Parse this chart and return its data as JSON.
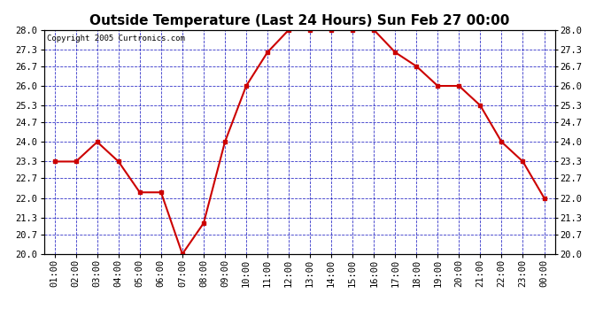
{
  "title": "Outside Temperature (Last 24 Hours) Sun Feb 27 00:00",
  "copyright": "Copyright 2005 Curtronics.com",
  "x_labels": [
    "01:00",
    "02:00",
    "03:00",
    "04:00",
    "05:00",
    "06:00",
    "07:00",
    "08:00",
    "09:00",
    "10:00",
    "11:00",
    "12:00",
    "13:00",
    "14:00",
    "15:00",
    "16:00",
    "17:00",
    "18:00",
    "19:00",
    "20:00",
    "21:00",
    "22:00",
    "23:00",
    "00:00"
  ],
  "x_values": [
    1,
    2,
    3,
    4,
    5,
    6,
    7,
    8,
    9,
    10,
    11,
    12,
    13,
    14,
    15,
    16,
    17,
    18,
    19,
    20,
    21,
    22,
    23,
    24
  ],
  "y_values": [
    23.3,
    23.3,
    24.0,
    23.3,
    22.2,
    22.2,
    20.0,
    21.1,
    24.0,
    26.0,
    27.2,
    28.0,
    28.0,
    28.0,
    28.0,
    28.0,
    27.2,
    26.7,
    26.0,
    26.0,
    25.3,
    24.0,
    23.3,
    22.0
  ],
  "ylim": [
    20.0,
    28.0
  ],
  "ytick_values": [
    20.0,
    20.7,
    21.3,
    22.0,
    22.7,
    23.3,
    24.0,
    24.7,
    25.3,
    26.0,
    26.7,
    27.3,
    28.0
  ],
  "ytick_labels": [
    "20.0",
    "20.7",
    "21.3",
    "22.0",
    "22.7",
    "23.3",
    "24.0",
    "24.7",
    "25.3",
    "26.0",
    "26.7",
    "27.3",
    "28.0"
  ],
  "line_color": "#cc0000",
  "marker": "s",
  "marker_size": 3,
  "plot_bg_color": "#ffffff",
  "fig_bg_color": "#ffffff",
  "grid_color": "#0000bb",
  "title_fontsize": 11,
  "tick_fontsize": 7.5,
  "copyright_fontsize": 6.5
}
